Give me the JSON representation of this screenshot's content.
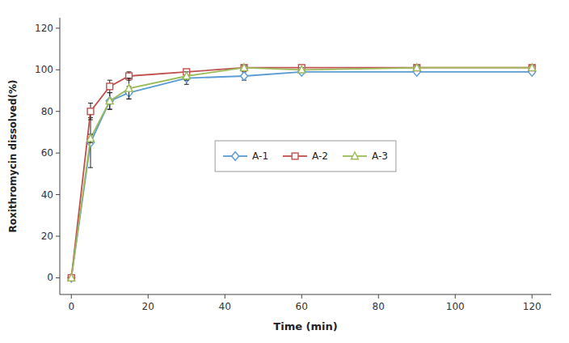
{
  "chart_data": {
    "type": "line",
    "xlabel": "Time (min)",
    "ylabel": "Roxithromycin dissolved(%)",
    "xlim": [
      -3,
      125
    ],
    "ylim": [
      -8,
      125
    ],
    "xticks": [
      0,
      20,
      40,
      60,
      80,
      100,
      120
    ],
    "yticks": [
      0,
      20,
      40,
      60,
      80,
      100,
      120
    ],
    "grid": false,
    "legend": "center",
    "x": [
      0,
      5,
      10,
      15,
      30,
      45,
      60,
      90,
      120
    ],
    "series": [
      {
        "name": "A-1",
        "color": "#5B9BD5",
        "marker": "diamond",
        "values": [
          0,
          65,
          85,
          89,
          96,
          97,
          99,
          99,
          99
        ],
        "errors": [
          0.3,
          12,
          4,
          3,
          3,
          2,
          1,
          1,
          1
        ]
      },
      {
        "name": "A-2",
        "color": "#C0504D",
        "marker": "square",
        "values": [
          0,
          80,
          92,
          97,
          99,
          101,
          101,
          101,
          101
        ],
        "errors": [
          0.3,
          4,
          3,
          2,
          1,
          1,
          1,
          1,
          1
        ]
      },
      {
        "name": "A-3",
        "color": "#9BBB59",
        "marker": "triangle",
        "values": [
          0,
          67,
          85,
          91,
          97,
          101,
          100,
          101,
          101
        ],
        "errors": [
          0.3,
          2,
          4,
          5,
          2,
          1,
          1,
          1,
          1
        ]
      }
    ]
  }
}
